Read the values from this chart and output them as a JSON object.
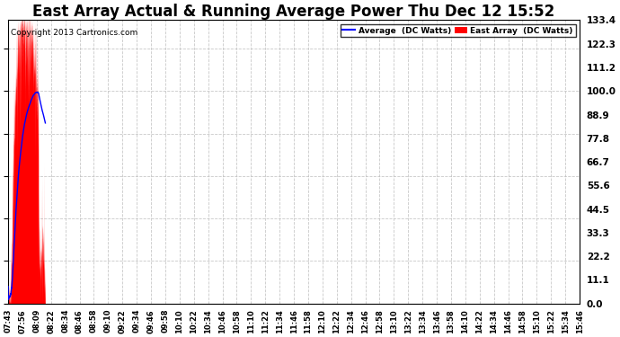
{
  "title": "East Array Actual & Running Average Power Thu Dec 12 15:52",
  "copyright": "Copyright 2013 Cartronics.com",
  "ylabel_right_ticks": [
    0.0,
    11.1,
    22.2,
    33.3,
    44.5,
    55.6,
    66.7,
    77.8,
    88.9,
    100.0,
    111.2,
    122.3,
    133.4
  ],
  "ymax": 133.4,
  "ymin": 0.0,
  "area_color": "#FF0000",
  "line_color": "#0000FF",
  "background_color": "#FFFFFF",
  "grid_color": "#BBBBBB",
  "title_fontsize": 12,
  "legend_labels": [
    "Average  (DC Watts)",
    "East Array  (DC Watts)"
  ],
  "legend_colors": [
    "#0000FF",
    "#FF0000"
  ]
}
